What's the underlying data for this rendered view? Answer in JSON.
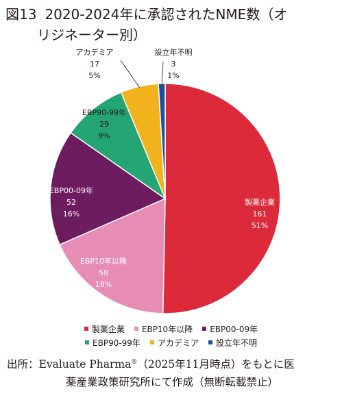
{
  "title": {
    "figure_number": "図13",
    "line1": "2020-2024年に承認されたNME数（オ",
    "line2": "リジネーター別）"
  },
  "chart_data": {
    "type": "pie",
    "unit_suffix": "%",
    "slices": [
      {
        "label": "製薬企業",
        "count": "161",
        "percent": "51",
        "color": "#dd2a3a"
      },
      {
        "label": "EBP10年以降",
        "count": "58",
        "percent": "18",
        "color": "#e68cb5"
      },
      {
        "label": "EBP00-09年",
        "count": "52",
        "percent": "16",
        "color": "#6d1d5f"
      },
      {
        "label": "EBP90-99年",
        "count": "29",
        "percent": "9",
        "color": "#25a474"
      },
      {
        "label": "アカデミア",
        "count": "17",
        "percent": "5",
        "color": "#f2b21e"
      },
      {
        "label": "設立年不明",
        "count": "3",
        "percent": "1",
        "color": "#1f50a0"
      }
    ],
    "legend": {
      "position": "bottom",
      "rows": [
        [
          0,
          1,
          2
        ],
        [
          3,
          4,
          5
        ]
      ]
    }
  },
  "source": {
    "line1_prefix": "出所：Evaluate Pharma",
    "line1_sup": "®",
    "line1_suffix": "（2025年11月時点）をもとに医",
    "line2": "薬産業政策研究所にて作成（無断転載禁止）"
  }
}
